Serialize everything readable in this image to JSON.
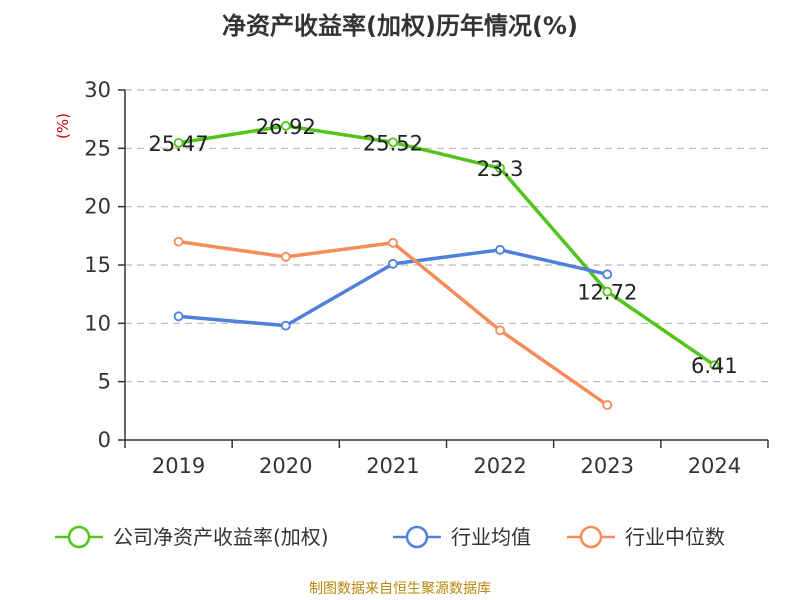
{
  "title": "净资产收益率(加权)历年情况(%)",
  "source": "制图数据来自恒生聚源数据库",
  "chart_data": {
    "type": "line",
    "categories": [
      "2019",
      "2020",
      "2021",
      "2022",
      "2023",
      "2024"
    ],
    "ylabel": "(%)",
    "ylim": [
      0,
      30
    ],
    "yticks": [
      0,
      5,
      10,
      15,
      20,
      25,
      30
    ],
    "grid": true,
    "legend_position": "bottom",
    "series": [
      {
        "name": "公司净资产收益率(加权)",
        "color": "#52c41a",
        "values": [
          25.47,
          26.92,
          25.52,
          23.3,
          12.72,
          6.41
        ],
        "labels": [
          "25.47",
          "26.92",
          "25.52",
          "23.3",
          "12.72",
          "6.41"
        ]
      },
      {
        "name": "行业均值",
        "color": "#4e80dc",
        "values": [
          10.6,
          9.8,
          15.1,
          16.3,
          14.2,
          null
        ]
      },
      {
        "name": "行业中位数",
        "color": "#f58c5a",
        "values": [
          17.0,
          15.7,
          16.9,
          9.4,
          3.0,
          null
        ]
      }
    ]
  }
}
